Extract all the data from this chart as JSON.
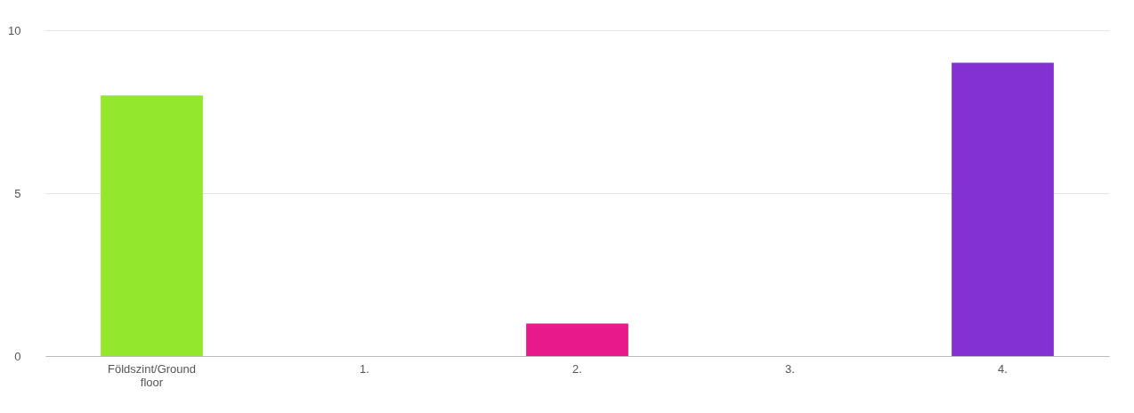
{
  "chart_data": {
    "type": "bar",
    "categories": [
      "Földszint/Ground floor",
      "1.",
      "2.",
      "3.",
      "4."
    ],
    "values": [
      8,
      0,
      1,
      0,
      9
    ],
    "colors": [
      "#93e72c",
      "#93e72c",
      "#e8198b",
      "#e8198b",
      "#8431d4"
    ],
    "ylim": [
      0,
      10
    ],
    "yticks": [
      0,
      5,
      10
    ],
    "grid": "y"
  }
}
